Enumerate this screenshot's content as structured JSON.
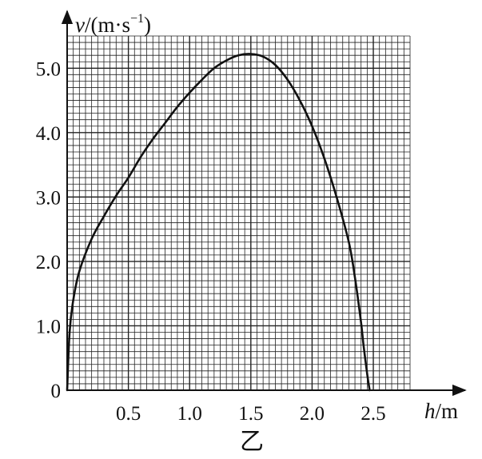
{
  "chart_data": {
    "type": "line",
    "caption": "乙",
    "xlabel": {
      "var": "h",
      "unit": "/m"
    },
    "ylabel": {
      "var": "v",
      "unit": "/(m·s",
      "exp": "−1",
      "close": ")"
    },
    "xlim": [
      0,
      2.8
    ],
    "ylim": [
      0,
      5.5
    ],
    "x_ticks": [
      {
        "value": 0.5,
        "label": "0.5"
      },
      {
        "value": 1.0,
        "label": "1.0"
      },
      {
        "value": 1.5,
        "label": "1.5"
      },
      {
        "value": 2.0,
        "label": "2.0"
      },
      {
        "value": 2.5,
        "label": "2.5"
      }
    ],
    "y_ticks": [
      {
        "value": 0,
        "label": "0"
      },
      {
        "value": 1.0,
        "label": "1.0"
      },
      {
        "value": 2.0,
        "label": "2.0"
      },
      {
        "value": 3.0,
        "label": "3.0"
      },
      {
        "value": 4.0,
        "label": "4.0"
      },
      {
        "value": 5.0,
        "label": "5.0"
      }
    ],
    "grid": true,
    "grid_minor_step": {
      "x": 0.05,
      "y": 0.1
    },
    "series": [
      {
        "color": "#111111",
        "x": [
          0,
          0.02,
          0.05,
          0.1,
          0.2,
          0.3,
          0.4,
          0.5,
          0.6,
          0.7,
          0.8,
          0.9,
          1.0,
          1.1,
          1.2,
          1.3,
          1.4,
          1.5,
          1.6,
          1.7,
          1.8,
          1.9,
          2.0,
          2.1,
          2.2,
          2.3,
          2.35,
          2.4,
          2.42,
          2.45,
          2.47
        ],
        "y": [
          0,
          0.9,
          1.4,
          1.85,
          2.35,
          2.7,
          3.02,
          3.3,
          3.62,
          3.9,
          4.15,
          4.4,
          4.62,
          4.82,
          5.0,
          5.12,
          5.2,
          5.22,
          5.18,
          5.05,
          4.82,
          4.5,
          4.1,
          3.6,
          3.0,
          2.3,
          1.75,
          1.05,
          0.7,
          0.25,
          0
        ]
      }
    ]
  }
}
